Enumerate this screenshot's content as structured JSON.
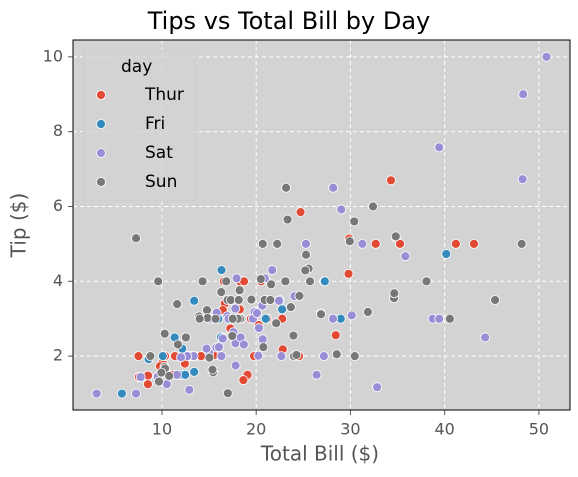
{
  "chart_data": {
    "type": "scatter",
    "title": "Tips vs Total Bill by Day",
    "x_label": "Total Bill ($)",
    "y_label": "Tip ($)",
    "xlim": [
      0.56,
      53.3
    ],
    "ylim": [
      0.56,
      10.45
    ],
    "xticks": [
      10,
      20,
      30,
      40,
      50
    ],
    "yticks": [
      2,
      4,
      6,
      8,
      10
    ],
    "grid": true,
    "legend": "upper left",
    "legend_title": "day",
    "series": [
      {
        "name": "Thur",
        "color": "#e24a33",
        "x": [
          27.2,
          22.76,
          17.29,
          19.44,
          16.66,
          10.07,
          32.68,
          15.98,
          34.83,
          13.03,
          18.28,
          24.71,
          21.16,
          28.44,
          15.48,
          16.58,
          7.56,
          10.34,
          43.11,
          13,
          13.51,
          18.71,
          12.74,
          16.4,
          20.53,
          16.47,
          8.52,
          14.52,
          11.38,
          22.82,
          19.08,
          20.27,
          11.17,
          12.26,
          18.26,
          8.51,
          10.33,
          14.15,
          12.03,
          13.13,
          17.26,
          24.55,
          19.77,
          29.85,
          41.19,
          35.26,
          29.8,
          34.3,
          18.64,
          7.51,
          10.09,
          12.43,
          9.78
        ],
        "values": [
          4,
          3,
          2.71,
          3,
          3.4,
          1.83,
          5,
          2.03,
          5.17,
          2,
          4,
          5.85,
          3,
          2.56,
          2.02,
          4,
          1.44,
          2,
          5,
          2,
          2,
          4,
          2.01,
          2.5,
          4,
          3.23,
          1.48,
          2,
          2,
          2.18,
          1.5,
          2.83,
          1.5,
          2,
          3.25,
          1.25,
          2,
          2,
          1.5,
          2,
          2.74,
          2,
          2,
          5.14,
          5,
          5,
          4.2,
          6.7,
          1.36,
          2,
          2,
          1.8,
          1.73
        ]
      },
      {
        "name": "Fri",
        "color": "#348abd",
        "x": [
          28.97,
          22.49,
          5.75,
          16.32,
          22.75,
          40.17,
          27.28,
          12.03,
          21.01,
          12.46,
          11.35,
          15.38,
          12.16,
          13.42,
          8.58,
          15.98,
          13.42,
          16.27,
          10.09
        ],
        "values": [
          3,
          3.5,
          1,
          4.3,
          3.25,
          4.73,
          4,
          1.5,
          3,
          1.5,
          2.5,
          3,
          2.2,
          3.48,
          1.92,
          3,
          1.58,
          2.5,
          2
        ]
      },
      {
        "name": "Sat",
        "color": "#988ed5",
        "x": [
          20.65,
          17.92,
          20.29,
          15.77,
          39.42,
          19.82,
          17.81,
          13.37,
          12.69,
          21.7,
          19.65,
          9.55,
          18.35,
          15.06,
          20.69,
          17.78,
          24.06,
          16.31,
          16.93,
          18.69,
          31.27,
          16.04,
          26.41,
          48.27,
          17.59,
          20.08,
          16.45,
          3.07,
          20.23,
          15.01,
          12.02,
          17.07,
          26.86,
          25.28,
          14.73,
          10.51,
          44.3,
          22.42,
          20.92,
          50.81,
          15.81,
          7.25,
          48.33,
          28.17,
          12.9,
          28.15,
          11.59,
          7.74,
          30.14,
          29.03,
          27.18,
          22.67,
          17.82,
          32.83,
          35.83,
          38.73,
          39.42
        ],
        "values": [
          3.35,
          4.08,
          2.75,
          2.23,
          7.58,
          3.18,
          2.34,
          2,
          2,
          4.3,
          3,
          1.45,
          2.5,
          3,
          2.45,
          3.27,
          3.6,
          2,
          3.07,
          2.31,
          5,
          2.24,
          1.5,
          6.73,
          2.64,
          3.15,
          2.47,
          1,
          2.01,
          2.09,
          1.97,
          3,
          3.14,
          5,
          2.2,
          1.25,
          2.5,
          3.48,
          4.08,
          10,
          3.16,
          1,
          9,
          6.5,
          1.1,
          3,
          1.5,
          1.44,
          3.09,
          5.92,
          2,
          2,
          1.75,
          1.17,
          4.67,
          3,
          3
        ]
      },
      {
        "name": "Sun",
        "color": "#777777",
        "x": [
          16.99,
          10.34,
          21.01,
          23.68,
          24.59,
          25.29,
          8.77,
          26.88,
          15.04,
          14.78,
          10.27,
          15.42,
          18.43,
          14.83,
          21.58,
          10.33,
          16.29,
          16.97,
          17.46,
          13.94,
          9.68,
          30.4,
          18.29,
          22.23,
          32.4,
          28.55,
          18.04,
          12.54,
          10.29,
          34.81,
          9.94,
          25.56,
          19.49,
          38.07,
          23.95,
          25.71,
          17.31,
          29.93,
          45.35,
          23.33,
          23.17,
          40.55,
          20.69,
          20.9,
          30.46,
          18.15,
          23.1,
          11.69,
          22.12,
          24.01,
          15.69,
          11.61,
          10.77,
          15.36,
          20.49,
          25.21,
          18.24,
          14.31,
          14,
          7.25,
          34.63,
          34.65,
          48.17,
          31.85,
          17.51,
          9.6,
          20.76,
          24.27,
          16.82,
          21.5
        ],
        "values": [
          1.01,
          1.66,
          3.5,
          3.31,
          3.61,
          4.71,
          2,
          3.12,
          1.96,
          3.23,
          1.71,
          1.57,
          3,
          3.02,
          3.92,
          1.67,
          3.71,
          3.5,
          2.54,
          3.06,
          1.32,
          5.6,
          3,
          5,
          6,
          2.05,
          3,
          2.5,
          2.6,
          5.2,
          1.56,
          4.34,
          3.51,
          4,
          2.55,
          4,
          3.5,
          5.07,
          3.5,
          5.65,
          6.5,
          3,
          5,
          3.5,
          2,
          3.5,
          4,
          2.31,
          2.88,
          2,
          3,
          3.39,
          1.47,
          1.64,
          4.06,
          4.29,
          3.76,
          4,
          3,
          5.15,
          3.55,
          3.68,
          5,
          3.18,
          3,
          4,
          2.24,
          2.03,
          4,
          3.5
        ]
      }
    ]
  }
}
